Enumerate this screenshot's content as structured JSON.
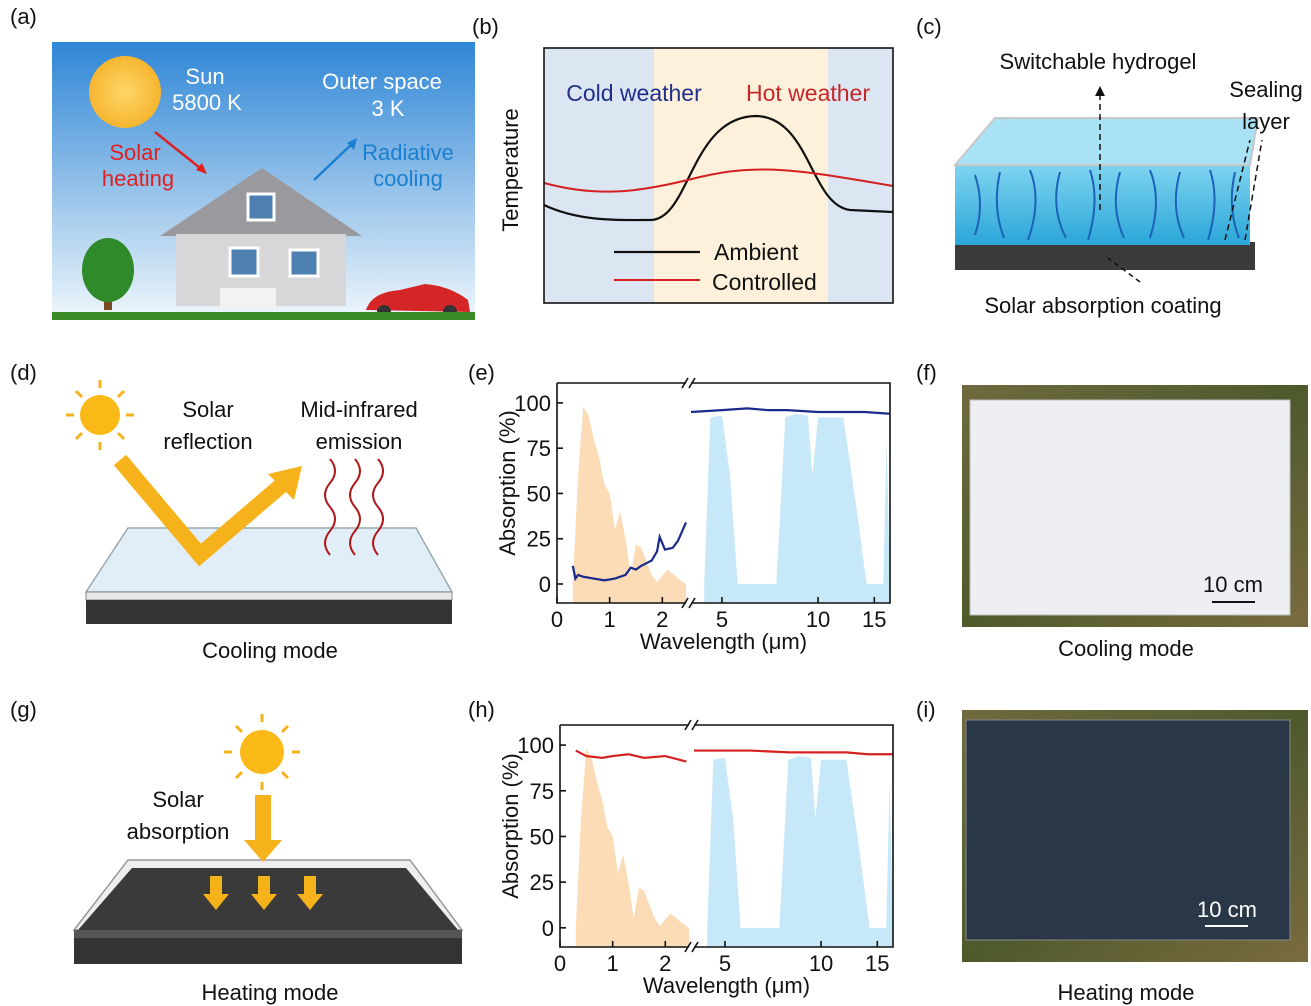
{
  "a": {
    "label": "(a)",
    "sun": "Sun",
    "sun_temp": "5800 K",
    "space": "Outer space",
    "space_temp": "3 K",
    "solar_heating": [
      "Solar",
      "heating"
    ],
    "radiative_cooling": [
      "Radiative",
      "cooling"
    ]
  },
  "b": {
    "label": "(b)",
    "y_label": "Temperature",
    "cold": "Cold weather",
    "hot": "Hot weather",
    "legend": [
      "Ambient",
      "Controlled"
    ]
  },
  "c": {
    "label": "(c)",
    "hydrogel": "Switchable hydrogel",
    "sealing": [
      "Sealing",
      "layer"
    ],
    "coating": "Solar absorption coating"
  },
  "d": {
    "label": "(d)",
    "reflection": [
      "Solar",
      "reflection"
    ],
    "emission": [
      "Mid-infrared",
      "emission"
    ],
    "caption": "Cooling mode"
  },
  "f": {
    "label": "(f)",
    "scale": "10 cm",
    "caption": "Cooling mode"
  },
  "g": {
    "label": "(g)",
    "absorption": [
      "Solar",
      "absorption"
    ],
    "caption": "Heating mode"
  },
  "i": {
    "label": "(i)",
    "scale": "10 cm",
    "caption": "Heating mode"
  },
  "chart_data": [
    {
      "type": "line",
      "label": "(e)",
      "y_label": "Absorption (%)",
      "x_label": "Wavelength (μm)",
      "ylim": [
        -10.5,
        111
      ],
      "yticks": [
        0,
        25,
        50,
        75,
        100
      ],
      "x_segments": [
        {
          "xlim": [
            0,
            2.45
          ],
          "xticks": [
            0,
            1,
            2
          ],
          "log": false
        },
        {
          "xlim": [
            4,
            16.8
          ],
          "xticks": [
            5,
            10,
            15
          ],
          "log": true
        }
      ],
      "series": [
        {
          "kind": "area",
          "segment": 0,
          "color": "#fbdcb6",
          "x": [
            0.3,
            0.4,
            0.5,
            0.6,
            0.7,
            0.8,
            0.9,
            1.0,
            1.1,
            1.2,
            1.3,
            1.4,
            1.5,
            1.6,
            1.8,
            1.9,
            2.1,
            2.3,
            2.45
          ],
          "values": [
            0,
            60,
            98,
            93,
            80,
            70,
            55,
            50,
            30,
            40,
            25,
            5,
            22,
            20,
            5,
            1,
            8,
            3,
            0
          ]
        },
        {
          "kind": "area",
          "segment": 1,
          "color": "#c7e8f8",
          "x": [
            4.4,
            4.6,
            5.0,
            5.3,
            5.6,
            7.4,
            7.9,
            8.5,
            9.3,
            9.6,
            10.0,
            12.0,
            13.0,
            14.2,
            16.0,
            16.4,
            16.8
          ],
          "values": [
            0,
            92,
            93,
            60,
            0,
            0,
            92,
            94,
            93,
            60,
            92,
            92,
            50,
            0,
            0,
            80,
            0
          ]
        },
        {
          "kind": "line",
          "segment": 0,
          "color": "#1a2a8c",
          "x": [
            0.3,
            0.35,
            0.4,
            0.5,
            0.7,
            0.9,
            1.1,
            1.3,
            1.4,
            1.5,
            1.6,
            1.8,
            1.9,
            1.95,
            2.05,
            2.2,
            2.3,
            2.45
          ],
          "values": [
            10,
            3,
            5,
            4,
            3,
            2,
            3,
            5,
            9,
            8,
            10,
            13,
            18,
            26,
            19,
            20,
            24,
            34
          ]
        },
        {
          "kind": "line",
          "segment": 1,
          "color": "#1a2a8c",
          "x": [
            4,
            5,
            6,
            7,
            8,
            10,
            12,
            14,
            16.8
          ],
          "values": [
            95,
            96,
            97,
            96,
            96,
            95,
            95,
            95,
            94
          ]
        }
      ]
    },
    {
      "type": "line",
      "label": "(h)",
      "y_label": "Absorption (%)",
      "x_label": "Wavelength (μm)",
      "ylim": [
        -10.5,
        111
      ],
      "yticks": [
        0,
        25,
        50,
        75,
        100
      ],
      "x_segments": [
        {
          "xlim": [
            0,
            2.45
          ],
          "xticks": [
            0,
            1,
            2
          ],
          "log": false
        },
        {
          "xlim": [
            4,
            16.8
          ],
          "xticks": [
            5,
            10,
            15
          ],
          "log": true
        }
      ],
      "series": [
        {
          "kind": "area",
          "segment": 0,
          "color": "#fbdcb6",
          "x": [
            0.3,
            0.4,
            0.5,
            0.6,
            0.7,
            0.8,
            0.9,
            1.0,
            1.1,
            1.2,
            1.3,
            1.4,
            1.5,
            1.6,
            1.8,
            1.9,
            2.1,
            2.3,
            2.45
          ],
          "values": [
            0,
            60,
            98,
            93,
            80,
            70,
            55,
            50,
            30,
            40,
            25,
            5,
            22,
            20,
            5,
            1,
            8,
            3,
            0
          ]
        },
        {
          "kind": "area",
          "segment": 1,
          "color": "#c7e8f8",
          "x": [
            4.4,
            4.6,
            5.0,
            5.3,
            5.6,
            7.4,
            7.9,
            8.5,
            9.3,
            9.6,
            10.0,
            12.0,
            13.0,
            14.2,
            16.0,
            16.4,
            16.8
          ],
          "values": [
            0,
            92,
            93,
            60,
            0,
            0,
            92,
            94,
            93,
            60,
            92,
            92,
            50,
            0,
            0,
            80,
            0
          ]
        },
        {
          "kind": "line",
          "segment": 0,
          "color": "#d42020",
          "x": [
            0.3,
            0.5,
            0.8,
            1.0,
            1.3,
            1.6,
            2.0,
            2.4
          ],
          "values": [
            97,
            94,
            93,
            94,
            95,
            93,
            94,
            91
          ]
        },
        {
          "kind": "line",
          "segment": 1,
          "color": "#d42020",
          "x": [
            4,
            6,
            8,
            10,
            12,
            14,
            16.8
          ],
          "values": [
            97,
            97,
            96,
            96,
            96,
            95,
            95
          ]
        }
      ]
    }
  ]
}
